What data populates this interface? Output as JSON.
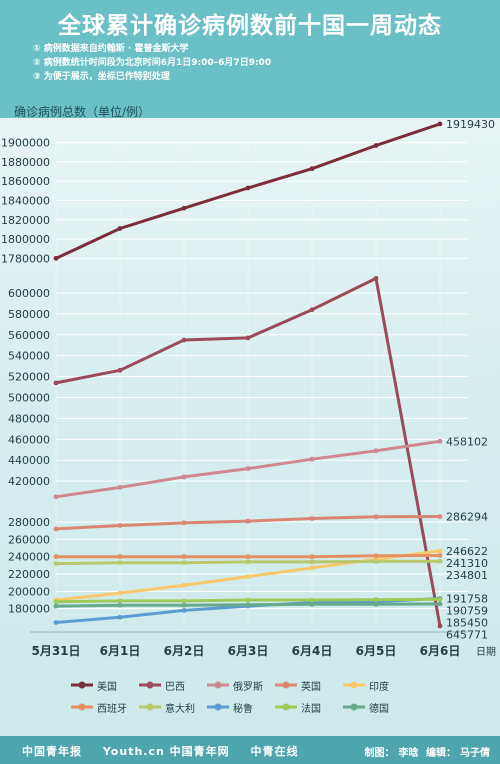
{
  "header": {
    "title": "全球累计确诊病例数前十国一周动态",
    "notes": [
      "① 病例数据来自约翰斯 · 霍普金斯大学",
      "② 病例数统计时间段为北京时间6月1日9:00–6月7日9:00",
      "③ 为便于展示，坐标已作特别处理"
    ]
  },
  "footer": {
    "logos": [
      "中国青年报",
      "Youth.cn 中国青年网",
      "中青在线"
    ],
    "credits": {
      "maker_label": "制图：",
      "maker": "李晗",
      "editor_label": "编辑：",
      "editor": "马子倩"
    }
  },
  "chart_data": {
    "type": "line",
    "title": "全球累计确诊病例数前十国一周动态",
    "ylabel": "确诊病例总数（单位/例）",
    "xlabel": "日期",
    "categories": [
      "5月31日",
      "6月1日",
      "6月2日",
      "6月3日",
      "6月4日",
      "6月5日",
      "6月6日"
    ],
    "y_ticks": [
      180000,
      200000,
      220000,
      240000,
      260000,
      280000,
      420000,
      440000,
      460000,
      480000,
      500000,
      520000,
      540000,
      560000,
      580000,
      600000,
      1780000,
      1800000,
      1820000,
      1840000,
      1860000,
      1880000,
      1900000
    ],
    "y_ticks_labels": [
      "180000",
      "200000",
      "220000",
      "240000",
      "260000",
      "280000",
      "420000",
      "440000",
      "460000",
      "480000",
      "500000",
      "520000",
      "540000",
      "560000",
      "580000",
      "600000",
      "1780000",
      "1800000",
      "1820000",
      "1840000",
      "1860000",
      "1880000",
      "1900000"
    ],
    "axis_note": "broken y-axis with compressed segments",
    "grid": true,
    "legend_position": "bottom",
    "series": [
      {
        "name": "美国",
        "color": "#7b2d3a",
        "values": [
          1780000,
          1811000,
          1832000,
          1853000,
          1873000,
          1897000,
          1919430
        ],
        "end_label": "1919430"
      },
      {
        "name": "巴西",
        "color": "#9c4a5a",
        "values": [
          514000,
          526000,
          555000,
          557000,
          584000,
          614000,
          645771
        ],
        "end_label": "645771"
      },
      {
        "name": "俄罗斯",
        "color": "#cf8790",
        "values": [
          405000,
          414000,
          424000,
          432000,
          441000,
          449000,
          458102
        ],
        "end_label": "458102"
      },
      {
        "name": "英国",
        "color": "#d98774",
        "values": [
          272000,
          276000,
          279000,
          281000,
          284000,
          286000,
          286294
        ],
        "end_label": "286294"
      },
      {
        "name": "印度",
        "color": "#f7c96a",
        "values": [
          190000,
          198000,
          207000,
          217000,
          227000,
          237000,
          246622
        ],
        "end_label": "246622"
      },
      {
        "name": "西班牙",
        "color": "#e49060",
        "values": [
          240000,
          240000,
          240000,
          240000,
          240000,
          241000,
          241310
        ],
        "end_label": "241310"
      },
      {
        "name": "意大利",
        "color": "#b7c86a",
        "values": [
          232000,
          233000,
          233000,
          234000,
          234000,
          234500,
          234801
        ],
        "end_label": "234801"
      },
      {
        "name": "秘鲁",
        "color": "#5e9bd1",
        "values": [
          164000,
          170000,
          178000,
          183000,
          187000,
          188000,
          191758
        ],
        "end_label": "191758"
      },
      {
        "name": "法国",
        "color": "#9ccb5a",
        "values": [
          188000,
          189000,
          189000,
          190000,
          190000,
          190500,
          190759
        ],
        "end_label": "190759"
      },
      {
        "name": "德国",
        "color": "#69a98b",
        "values": [
          183000,
          184000,
          184000,
          184500,
          185000,
          185000,
          185450
        ],
        "end_label": "185450"
      }
    ]
  }
}
